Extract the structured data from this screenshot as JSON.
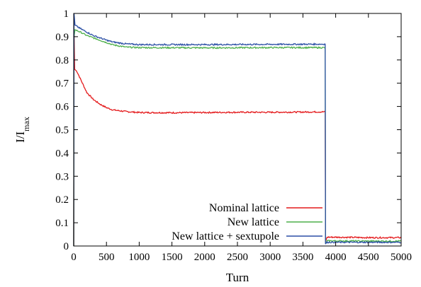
{
  "chart_data": {
    "type": "line",
    "xlabel": "Turn",
    "ylabel": {
      "base": "I/I",
      "sub": "max"
    },
    "xlim": [
      0,
      5000
    ],
    "ylim": [
      0,
      1
    ],
    "x_ticks": [
      0,
      500,
      1000,
      1500,
      2000,
      2500,
      3000,
      3500,
      4000,
      4500,
      5000
    ],
    "y_ticks": [
      0,
      0.1,
      0.2,
      0.3,
      0.4,
      0.5,
      0.6,
      0.7,
      0.8,
      0.9,
      1
    ],
    "grid": false,
    "legend_position": "bottom-right",
    "series": [
      {
        "name": "Nominal lattice",
        "color": "#e41a1c",
        "points": [
          [
            0,
            0.0
          ],
          [
            5,
            0.93
          ],
          [
            15,
            0.76
          ],
          [
            50,
            0.75
          ],
          [
            100,
            0.72
          ],
          [
            200,
            0.66
          ],
          [
            300,
            0.63
          ],
          [
            400,
            0.61
          ],
          [
            500,
            0.595
          ],
          [
            600,
            0.585
          ],
          [
            800,
            0.578
          ],
          [
            1000,
            0.574
          ],
          [
            1500,
            0.573
          ],
          [
            2000,
            0.574
          ],
          [
            2500,
            0.575
          ],
          [
            3000,
            0.575
          ],
          [
            3500,
            0.576
          ],
          [
            3840,
            0.577
          ],
          [
            3845,
            0.02
          ],
          [
            3870,
            0.038
          ],
          [
            4000,
            0.038
          ],
          [
            4500,
            0.036
          ],
          [
            5000,
            0.036
          ]
        ]
      },
      {
        "name": "New lattice",
        "color": "#4daf4a",
        "points": [
          [
            0,
            0.0
          ],
          [
            5,
            0.9
          ],
          [
            20,
            0.93
          ],
          [
            100,
            0.92
          ],
          [
            200,
            0.905
          ],
          [
            300,
            0.895
          ],
          [
            400,
            0.885
          ],
          [
            500,
            0.875
          ],
          [
            600,
            0.865
          ],
          [
            800,
            0.855
          ],
          [
            1000,
            0.853
          ],
          [
            2000,
            0.852
          ],
          [
            3000,
            0.853
          ],
          [
            3840,
            0.853
          ],
          [
            3845,
            0.012
          ],
          [
            3870,
            0.022
          ],
          [
            4000,
            0.022
          ],
          [
            4500,
            0.021
          ],
          [
            5000,
            0.021
          ]
        ]
      },
      {
        "name": "New lattice + sextupole",
        "color": "#2b4fa5",
        "points": [
          [
            0,
            0.0
          ],
          [
            5,
            1.0
          ],
          [
            20,
            0.95
          ],
          [
            100,
            0.935
          ],
          [
            200,
            0.92
          ],
          [
            300,
            0.905
          ],
          [
            400,
            0.895
          ],
          [
            500,
            0.885
          ],
          [
            600,
            0.877
          ],
          [
            800,
            0.869
          ],
          [
            1000,
            0.866
          ],
          [
            2000,
            0.866
          ],
          [
            3000,
            0.867
          ],
          [
            3840,
            0.868
          ],
          [
            3845,
            0.01
          ],
          [
            3870,
            0.016
          ],
          [
            4000,
            0.016
          ],
          [
            4500,
            0.016
          ],
          [
            5000,
            0.016
          ]
        ]
      }
    ]
  }
}
